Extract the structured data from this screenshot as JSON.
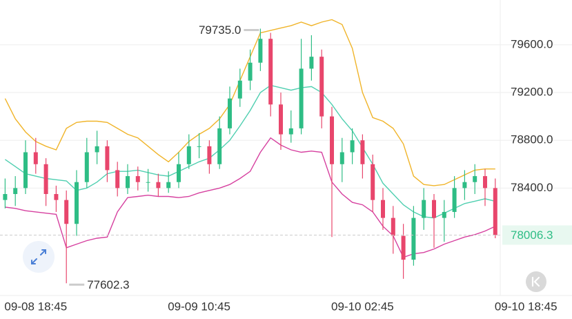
{
  "chart_data": {
    "type": "candlestick",
    "categories": [
      null,
      null,
      null,
      "09-08 18:45",
      null,
      null,
      null,
      null,
      null,
      null,
      null,
      null,
      null,
      null,
      null,
      null,
      null,
      null,
      null,
      "09-09 10:45",
      null,
      null,
      null,
      null,
      null,
      null,
      null,
      null,
      null,
      null,
      null,
      null,
      null,
      null,
      null,
      "09-10 02:45",
      null,
      null,
      null,
      null,
      null,
      null,
      null,
      null,
      null,
      null,
      null,
      null,
      null,
      null,
      null,
      "09-10 18:45"
    ],
    "open": [
      78300,
      78350,
      78400,
      78700,
      78600,
      78350,
      78300,
      78100,
      78450,
      78700,
      78750,
      78550,
      78400,
      78500,
      78450,
      78450,
      78400,
      78450,
      78600,
      78750,
      78750,
      78600,
      78900,
      79150,
      79300,
      79450,
      79650,
      79100,
      78850,
      78900,
      79400,
      79500,
      79000,
      78600,
      78700,
      78800,
      78600,
      78300,
      78150,
      78000,
      77800,
      78150,
      78300,
      78150,
      78200,
      78400,
      78450,
      78500,
      78400,
      null,
      null,
      null
    ],
    "high": [
      78480,
      78500,
      78800,
      78820,
      78650,
      78420,
      78380,
      78550,
      78820,
      78880,
      78800,
      78620,
      78600,
      78580,
      78560,
      78520,
      78540,
      78700,
      78850,
      78860,
      78800,
      79000,
      79250,
      79400,
      79560,
      79735.0,
      79700,
      79200,
      79050,
      79650,
      79680,
      79560,
      79080,
      78820,
      78900,
      78850,
      78680,
      78400,
      78250,
      78100,
      78250,
      78400,
      78350,
      78300,
      78500,
      78550,
      78600,
      78560,
      78480,
      null,
      null,
      null
    ],
    "low": [
      78230,
      78250,
      78350,
      78520,
      78250,
      78200,
      77602.3,
      78000,
      78400,
      78600,
      78450,
      78330,
      78350,
      78380,
      78370,
      78330,
      78360,
      78400,
      78560,
      78650,
      78520,
      78560,
      78850,
      79080,
      79220,
      79380,
      79000,
      78720,
      78780,
      78850,
      79300,
      78900,
      77990,
      78450,
      78600,
      78480,
      78200,
      78050,
      77850,
      77640,
      77750,
      78050,
      77900,
      77950,
      78150,
      78300,
      78350,
      78250,
      77980,
      null,
      null,
      null
    ],
    "close": [
      78350,
      78400,
      78700,
      78600,
      78350,
      78300,
      78100,
      78450,
      78700,
      78750,
      78550,
      78400,
      78500,
      78450,
      78450,
      78400,
      78450,
      78600,
      78750,
      78750,
      78600,
      78900,
      79150,
      79300,
      79450,
      79650,
      79100,
      78850,
      78900,
      79400,
      79500,
      79000,
      78600,
      78700,
      78800,
      78600,
      78300,
      78150,
      78000,
      77800,
      78150,
      78300,
      78150,
      78200,
      78400,
      78450,
      78500,
      78400,
      78006.3,
      null,
      null,
      null
    ],
    "up_color": "#2ebd85",
    "down_color": "#e8466c",
    "series": [
      {
        "color": "#f0b429",
        "values": [
          79150,
          78980,
          78870,
          78790,
          78750,
          78720,
          78900,
          78950,
          78960,
          78960,
          78950,
          78900,
          78850,
          78820,
          78750,
          78680,
          78620,
          78700,
          78790,
          78850,
          78900,
          78980,
          79100,
          79300,
          79500,
          79700,
          79720,
          79740,
          79760,
          79790,
          79760,
          79790,
          79810,
          79770,
          79570,
          79200,
          78990,
          78960,
          78900,
          78770,
          78500,
          78430,
          78420,
          78430,
          78470,
          78510,
          78550,
          78560,
          78560,
          null,
          null,
          null
        ]
      },
      {
        "color": "#4fcfb0",
        "values": [
          78640,
          78580,
          78520,
          78500,
          78480,
          78470,
          78460,
          78380,
          78400,
          78450,
          78520,
          78540,
          78540,
          78550,
          78530,
          78510,
          78500,
          78540,
          78580,
          78620,
          78650,
          78720,
          78800,
          78920,
          79050,
          79200,
          79260,
          79240,
          79220,
          79240,
          79250,
          79200,
          79100,
          78980,
          78880,
          78740,
          78600,
          78440,
          78350,
          78260,
          78200,
          78160,
          78150,
          78190,
          78230,
          78270,
          78290,
          78310,
          78290,
          null,
          null,
          null
        ]
      },
      {
        "color": "#d6409f",
        "values": [
          78240,
          78230,
          78210,
          78200,
          78190,
          78180,
          77900,
          77930,
          77960,
          77980,
          77990,
          78200,
          78320,
          78330,
          78340,
          78330,
          78330,
          78320,
          78330,
          78360,
          78380,
          78400,
          78430,
          78480,
          78540,
          78700,
          78820,
          78760,
          78720,
          78700,
          78710,
          78700,
          78450,
          78350,
          78280,
          78260,
          78200,
          78080,
          78000,
          77820,
          77850,
          77860,
          77890,
          77930,
          77960,
          77990,
          78010,
          78040,
          78080,
          null,
          null,
          null
        ]
      }
    ],
    "ylim": [
      77500,
      79975
    ],
    "yticks": [
      {
        "value": 78400,
        "label": "78400.0"
      },
      {
        "value": 78800,
        "label": "78800.0"
      },
      {
        "value": 79200,
        "label": "79200.0"
      },
      {
        "value": 79600,
        "label": "79600.0"
      }
    ],
    "grid": true,
    "max_label": "79735.0",
    "min_label": "77602.3",
    "last_price_label": "78006.3"
  }
}
